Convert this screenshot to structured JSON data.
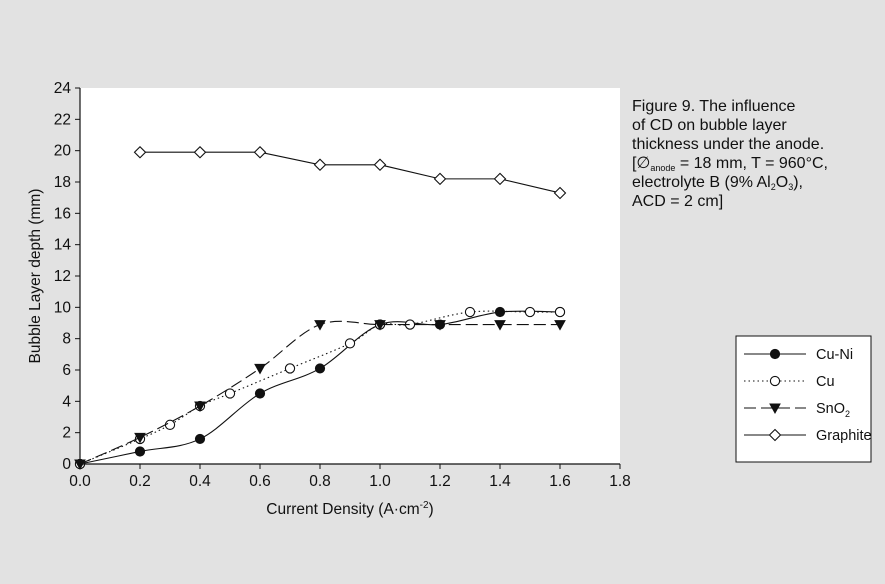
{
  "figure": {
    "caption_lines": [
      "Figure 9. The influence",
      "of CD on bubble layer",
      "thickness under the anode.",
      "[∅anode = 18 mm, T = 960°C,",
      "electrolyte B (9% Al2O3),",
      "ACD = 2 cm]"
    ],
    "caption_line4": {
      "sym": "[∅",
      "sub": "anode",
      "rest": " = 18 mm, T = 960°C,"
    },
    "caption_line5": {
      "pre": "electrolyte B (9% Al",
      "sub1": "2",
      "mid": "O",
      "sub2": "3",
      "post": "),"
    }
  },
  "colors": {
    "background": "#e2e2e2",
    "plot": "#ffffff",
    "ink": "#111111"
  },
  "chart_data": {
    "type": "line",
    "xlabel": "Current Density (A·cm-2)",
    "xlabel_parts": {
      "main": "Current Density (A·cm",
      "sup": "-2",
      "close": ")"
    },
    "ylabel": "Bubble Layer depth (mm)",
    "xlim": [
      0.0,
      1.8
    ],
    "ylim": [
      0,
      24
    ],
    "xticks": [
      "0.0",
      "0.2",
      "0.4",
      "0.6",
      "0.8",
      "1.0",
      "1.2",
      "1.4",
      "1.6",
      "1.8"
    ],
    "yticks": [
      "0",
      "2",
      "4",
      "6",
      "8",
      "10",
      "12",
      "14",
      "16",
      "18",
      "20",
      "22",
      "24"
    ],
    "grid": false,
    "legend_position": "right",
    "series": [
      {
        "name": "Cu-Ni",
        "marker": "filled-circle",
        "line": "solid",
        "smooth": true,
        "x": [
          0.0,
          0.2,
          0.4,
          0.6,
          0.8,
          1.0,
          1.2,
          1.4,
          1.6
        ],
        "y": [
          0.0,
          0.8,
          1.6,
          4.5,
          6.1,
          8.9,
          8.9,
          9.7,
          9.7
        ]
      },
      {
        "name": "Cu",
        "marker": "open-circle",
        "line": "dotted",
        "smooth": true,
        "x": [
          0.0,
          0.2,
          0.3,
          0.4,
          0.5,
          0.7,
          0.9,
          1.0,
          1.1,
          1.3,
          1.5,
          1.6
        ],
        "y": [
          0.0,
          1.6,
          2.5,
          3.7,
          4.5,
          6.1,
          7.7,
          8.9,
          8.9,
          9.7,
          9.7,
          9.7
        ]
      },
      {
        "name": "SnO2",
        "name_parts": {
          "main": "SnO",
          "sub": "2"
        },
        "marker": "filled-triangle-down",
        "line": "dashed",
        "smooth": true,
        "x": [
          0.0,
          0.2,
          0.4,
          0.6,
          0.8,
          1.0,
          1.2,
          1.4,
          1.6
        ],
        "y": [
          0.0,
          1.7,
          3.7,
          6.1,
          8.9,
          8.9,
          8.9,
          8.9,
          8.9
        ]
      },
      {
        "name": "Graphite",
        "marker": "open-diamond",
        "line": "solid",
        "smooth": false,
        "x": [
          0.2,
          0.4,
          0.6,
          0.8,
          1.0,
          1.2,
          1.4,
          1.6
        ],
        "y": [
          19.9,
          19.9,
          19.9,
          19.1,
          19.1,
          18.2,
          18.2,
          17.3
        ]
      }
    ]
  }
}
